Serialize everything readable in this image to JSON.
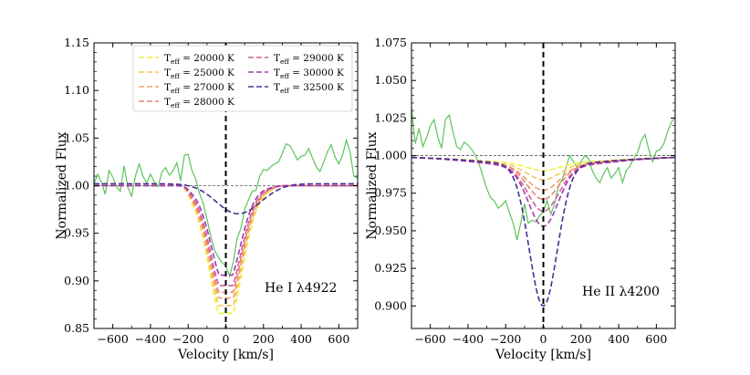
{
  "chart_data": [
    {
      "type": "line",
      "annotation": "He I λ4922",
      "xlabel": "Velocity [km/s]",
      "ylabel": "Normalized Flux",
      "xlim": [
        -700,
        700
      ],
      "ylim": [
        0.85,
        1.15
      ],
      "xticks": [
        -600,
        -400,
        -200,
        0,
        200,
        400,
        600
      ],
      "xtick_labels": [
        "−600",
        "−400",
        "−200",
        "0",
        "200",
        "400",
        "600"
      ],
      "yticks": [
        0.85,
        0.9,
        0.95,
        1.0,
        1.05,
        1.1,
        1.15
      ],
      "ytick_labels": [
        "0.85",
        "0.90",
        "0.95",
        "1.00",
        "1.05",
        "1.10",
        "1.15"
      ],
      "reference_lines": {
        "continuum": 1.0,
        "center_velocity": 0
      },
      "legend": {
        "placement": "top-center",
        "entries": [
          {
            "prefix": "T",
            "sub": "eff",
            "value": " = 20000 K",
            "color": "#f2f23a"
          },
          {
            "prefix": "T",
            "sub": "eff",
            "value": " = 25000 K",
            "color": "#f7c65a"
          },
          {
            "prefix": "T",
            "sub": "eff",
            "value": " = 27000 K",
            "color": "#f0a068"
          },
          {
            "prefix": "T",
            "sub": "eff",
            "value": " = 28000 K",
            "color": "#e8807a"
          },
          {
            "prefix": "T",
            "sub": "eff",
            "value": " = 29000 K",
            "color": "#d45f96"
          },
          {
            "prefix": "T",
            "sub": "eff",
            "value": " = 30000 K",
            "color": "#a23ab0"
          },
          {
            "prefix": "T",
            "sub": "eff",
            "value": " = 32500 K",
            "color": "#4a2e96"
          }
        ]
      },
      "observed": {
        "name": "observed",
        "color": "#5cc45c",
        "x": [
          -700,
          -680,
          -660,
          -640,
          -620,
          -600,
          -580,
          -560,
          -540,
          -520,
          -500,
          -480,
          -460,
          -440,
          -420,
          -400,
          -380,
          -360,
          -340,
          -320,
          -300,
          -280,
          -260,
          -240,
          -220,
          -200,
          -180,
          -160,
          -140,
          -120,
          -100,
          -80,
          -60,
          -40,
          -20,
          0,
          20,
          40,
          60,
          80,
          100,
          120,
          140,
          160,
          180,
          200,
          220,
          240,
          260,
          280,
          300,
          320,
          340,
          360,
          380,
          400,
          420,
          440,
          460,
          480,
          500,
          520,
          540,
          560,
          580,
          600,
          620,
          640,
          660,
          680,
          700
        ],
        "y": [
          1.002,
          1.012,
          1.003,
          0.991,
          1.016,
          1.009,
          0.999,
          0.994,
          1.021,
          0.998,
          0.989,
          1.01,
          1.023,
          1.01,
          1.003,
          1.012,
          1.004,
          0.999,
          1.014,
          1.019,
          1.011,
          1.016,
          1.024,
          1.005,
          1.032,
          1.033,
          1.016,
          1.007,
          0.992,
          0.981,
          0.965,
          0.947,
          0.932,
          0.925,
          0.919,
          0.916,
          0.905,
          0.92,
          0.945,
          0.955,
          0.975,
          0.985,
          0.994,
          0.995,
          1.01,
          1.017,
          1.016,
          1.02,
          1.023,
          1.025,
          1.034,
          1.044,
          1.042,
          1.035,
          1.027,
          1.031,
          1.032,
          1.039,
          1.029,
          1.02,
          1.015,
          1.025,
          1.036,
          1.043,
          1.03,
          1.023,
          1.032,
          1.048,
          1.035,
          1.01,
          1.008
        ]
      },
      "series": [
        {
          "name": "20000 K",
          "color": "#f2f23a",
          "line_center": 0.866,
          "line_width": 115,
          "ripple": 0.0
        },
        {
          "name": "25000 K",
          "color": "#f7c65a",
          "line_center": 0.874,
          "line_width": 114,
          "ripple": 0.0
        },
        {
          "name": "27000 K",
          "color": "#f0a068",
          "line_center": 0.882,
          "line_width": 112,
          "ripple": 0.0
        },
        {
          "name": "28000 K",
          "color": "#e8807a",
          "line_center": 0.888,
          "line_width": 110,
          "ripple": 0.0
        },
        {
          "name": "29000 K",
          "color": "#d45f96",
          "line_center": 0.895,
          "line_width": 108,
          "ripple": 0.0
        },
        {
          "name": "30000 K",
          "color": "#a23ab0",
          "line_center": 0.906,
          "line_width": 104,
          "ripple": 0.0
        },
        {
          "name": "32500 K",
          "color": "#4a2e96",
          "line_center": 0.965,
          "line_width": 160,
          "ripple": 0.0
        }
      ]
    },
    {
      "type": "line",
      "annotation": "He II λ4200",
      "xlabel": "Velocity [km/s]",
      "ylabel": "Normalized Flux",
      "xlim": [
        -700,
        700
      ],
      "ylim": [
        0.885,
        1.075
      ],
      "xticks": [
        -600,
        -400,
        -200,
        0,
        200,
        400,
        600
      ],
      "xtick_labels": [
        "−600",
        "−400",
        "−200",
        "0",
        "200",
        "400",
        "600"
      ],
      "yticks": [
        0.9,
        0.925,
        0.95,
        0.975,
        1.0,
        1.025,
        1.05,
        1.075
      ],
      "ytick_labels": [
        "0.900",
        "0.925",
        "0.950",
        "0.975",
        "1.000",
        "1.025",
        "1.050",
        "1.075"
      ],
      "reference_lines": {
        "continuum": 1.0,
        "center_velocity": 0
      },
      "observed": {
        "name": "observed",
        "color": "#5cc45c",
        "x": [
          -700,
          -680,
          -660,
          -640,
          -620,
          -600,
          -580,
          -560,
          -540,
          -520,
          -500,
          -480,
          -460,
          -440,
          -420,
          -400,
          -380,
          -360,
          -340,
          -320,
          -300,
          -280,
          -260,
          -240,
          -220,
          -200,
          -180,
          -160,
          -140,
          -120,
          -100,
          -80,
          -60,
          -40,
          -20,
          0,
          20,
          40,
          60,
          80,
          100,
          120,
          140,
          160,
          180,
          200,
          220,
          240,
          260,
          280,
          300,
          320,
          340,
          360,
          380,
          400,
          420,
          440,
          460,
          480,
          500,
          520,
          540,
          560,
          580,
          600,
          620,
          640,
          660,
          680,
          700
        ],
        "y": [
          1.032,
          1.008,
          1.018,
          1.006,
          1.012,
          1.02,
          1.024,
          1.012,
          1.005,
          1.024,
          1.027,
          1.016,
          1.006,
          1.004,
          1.009,
          1.007,
          1.004,
          1.0,
          0.994,
          0.986,
          0.978,
          0.972,
          0.97,
          0.965,
          0.967,
          0.97,
          0.962,
          0.955,
          0.944,
          0.955,
          0.968,
          0.955,
          0.957,
          0.956,
          0.96,
          0.963,
          0.97,
          0.961,
          0.968,
          0.98,
          0.984,
          0.992,
          1.0,
          0.996,
          0.992,
          0.996,
          1.0,
          0.998,
          0.99,
          0.985,
          0.982,
          0.988,
          0.992,
          0.985,
          0.988,
          0.992,
          0.982,
          0.99,
          0.993,
          0.998,
          1.002,
          1.01,
          1.014,
          1.004,
          0.996,
          1.003,
          1.004,
          1.008,
          1.016,
          1.022,
          1.026
        ]
      },
      "series": [
        {
          "name": "20000 K",
          "color": "#f2f23a",
          "line_center": 0.993,
          "line_width": 120,
          "wing": 0.002
        },
        {
          "name": "25000 K",
          "color": "#f7c65a",
          "line_center": 0.987,
          "line_width": 120,
          "wing": 0.003
        },
        {
          "name": "27000 K",
          "color": "#f0a068",
          "line_center": 0.98,
          "line_width": 118,
          "wing": 0.004
        },
        {
          "name": "28000 K",
          "color": "#e8807a",
          "line_center": 0.974,
          "line_width": 116,
          "wing": 0.004
        },
        {
          "name": "29000 K",
          "color": "#d45f96",
          "line_center": 0.966,
          "line_width": 114,
          "wing": 0.005
        },
        {
          "name": "30000 K",
          "color": "#a23ab0",
          "line_center": 0.956,
          "line_width": 110,
          "wing": 0.005
        },
        {
          "name": "32500 K",
          "color": "#4a2e96",
          "line_center": 0.903,
          "line_width": 105,
          "wing": 0.003
        }
      ]
    }
  ]
}
